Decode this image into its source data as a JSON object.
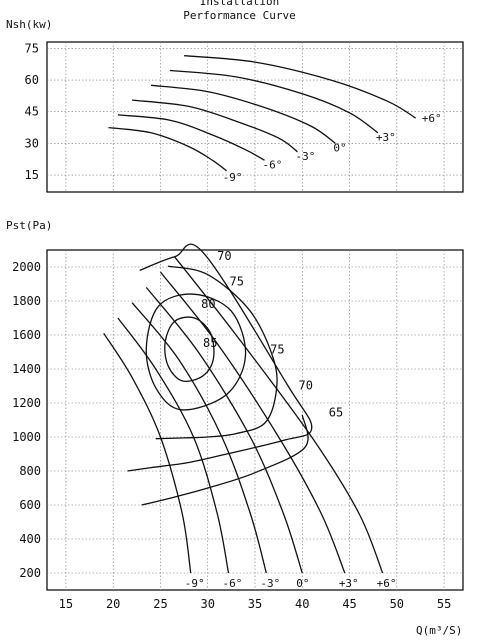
{
  "header": {
    "line1": "Installation",
    "line2": "Performance Curve"
  },
  "chart_data": [
    {
      "type": "line",
      "name": "power",
      "ylabel": "Nsh(kw)",
      "xlabel": "",
      "xlim": [
        13,
        57
      ],
      "ylim": [
        7,
        78
      ],
      "yticks": [
        15,
        30,
        45,
        60,
        75
      ],
      "grid": true,
      "series": [
        {
          "name": "-9°",
          "x": [
            19.5,
            24,
            28,
            30.5,
            32
          ],
          "y": [
            37.5,
            35,
            28.5,
            22,
            17
          ]
        },
        {
          "name": "-6°",
          "x": [
            20.5,
            26,
            30.5,
            34,
            36
          ],
          "y": [
            43.5,
            41,
            34,
            27,
            22
          ]
        },
        {
          "name": "-3°",
          "x": [
            22,
            28,
            33,
            37.5,
            39.5
          ],
          "y": [
            50.5,
            47.5,
            40.5,
            32.5,
            26
          ]
        },
        {
          "name": "0°",
          "x": [
            24,
            30,
            36,
            41,
            43.5
          ],
          "y": [
            57.5,
            54.5,
            47,
            38,
            30
          ]
        },
        {
          "name": "+3°",
          "x": [
            26,
            33,
            40,
            45,
            48
          ],
          "y": [
            64.5,
            61.5,
            53.5,
            44.5,
            35
          ]
        },
        {
          "name": "+6°",
          "x": [
            27.5,
            35,
            43,
            49,
            52
          ],
          "y": [
            71.5,
            68.5,
            60,
            50,
            42
          ]
        }
      ]
    },
    {
      "type": "line",
      "name": "pressure",
      "ylabel": "Pst(Pa)",
      "xlabel": "Q(m³/S)",
      "xlim": [
        13,
        57
      ],
      "ylim": [
        100,
        2100
      ],
      "xticks": [
        15,
        20,
        25,
        30,
        35,
        40,
        45,
        50,
        55
      ],
      "yticks": [
        200,
        400,
        600,
        800,
        1000,
        1200,
        1400,
        1600,
        1800,
        2000
      ],
      "grid": true,
      "blade_curves": [
        {
          "name": "-9°",
          "x": [
            19,
            22,
            25,
            27.3,
            28.2
          ],
          "y": [
            1610,
            1350,
            1000,
            550,
            200
          ]
        },
        {
          "name": "-6°",
          "x": [
            20.5,
            24.5,
            28.5,
            31,
            32.2
          ],
          "y": [
            1700,
            1400,
            1000,
            550,
            200
          ]
        },
        {
          "name": "-3°",
          "x": [
            22,
            27,
            31.5,
            34.5,
            36.2
          ],
          "y": [
            1790,
            1450,
            1000,
            550,
            200
          ]
        },
        {
          "name": "0°",
          "x": [
            23.5,
            29,
            34.5,
            38,
            40
          ],
          "y": [
            1880,
            1500,
            1000,
            550,
            200
          ]
        },
        {
          "name": "+3°",
          "x": [
            25,
            31,
            37.5,
            42,
            44.5
          ],
          "y": [
            1970,
            1550,
            1000,
            550,
            200
          ]
        },
        {
          "name": "+6°",
          "x": [
            26.5,
            33,
            41,
            46,
            48.5
          ],
          "y": [
            2060,
            1600,
            1000,
            550,
            200
          ]
        }
      ],
      "efficiency_curves": [
        {
          "name": "85",
          "points": [
            [
              27.3,
              1330
            ],
            [
              25.8,
              1420
            ],
            [
              25.5,
              1560
            ],
            [
              26.5,
              1680
            ],
            [
              28.6,
              1700
            ],
            [
              30.3,
              1610
            ],
            [
              30.6,
              1460
            ],
            [
              29.5,
              1360
            ],
            [
              27.3,
              1330
            ]
          ]
        },
        {
          "name": "80",
          "points": [
            [
              27.2,
              1160
            ],
            [
              24.5,
              1290
            ],
            [
              23.5,
              1520
            ],
            [
              24.8,
              1770
            ],
            [
              28.5,
              1840
            ],
            [
              32.5,
              1740
            ],
            [
              34,
              1480
            ],
            [
              32,
              1250
            ],
            [
              27.2,
              1160
            ]
          ]
        },
        {
          "name": "75",
          "points": [
            [
              25.8,
              2005
            ],
            [
              30,
              1955
            ],
            [
              34.5,
              1740
            ],
            [
              37,
              1450
            ],
            [
              37.2,
              1250
            ],
            [
              36,
              1080
            ],
            [
              33,
              1020
            ],
            [
              30,
              1000
            ],
            [
              27.5,
              995
            ],
            [
              24.5,
              990
            ]
          ]
        },
        {
          "name": "70",
          "points": [
            [
              22.8,
              1980
            ],
            [
              26.5,
              2060
            ],
            [
              29.6,
              2080
            ],
            [
              38.5,
              1300
            ],
            [
              41,
              1050
            ],
            [
              38,
              980
            ],
            [
              32,
              900
            ],
            [
              28,
              850
            ],
            [
              24,
              820
            ],
            [
              21.5,
              800
            ]
          ]
        },
        {
          "name": "65",
          "points": [
            [
              40,
              1130
            ],
            [
              40.3,
              940
            ],
            [
              35,
              790
            ],
            [
              30,
              700
            ],
            [
              26,
              640
            ],
            [
              23,
              600
            ]
          ]
        }
      ],
      "annotations": [
        {
          "text": "70",
          "x": 31,
          "y": 2040
        },
        {
          "text": "75",
          "x": 32.3,
          "y": 1890
        },
        {
          "text": "80",
          "x": 29.3,
          "y": 1760
        },
        {
          "text": "85",
          "x": 29.5,
          "y": 1530
        },
        {
          "text": "75",
          "x": 36.6,
          "y": 1490
        },
        {
          "text": "70",
          "x": 39.6,
          "y": 1280
        },
        {
          "text": "65",
          "x": 42.8,
          "y": 1120
        }
      ]
    }
  ]
}
